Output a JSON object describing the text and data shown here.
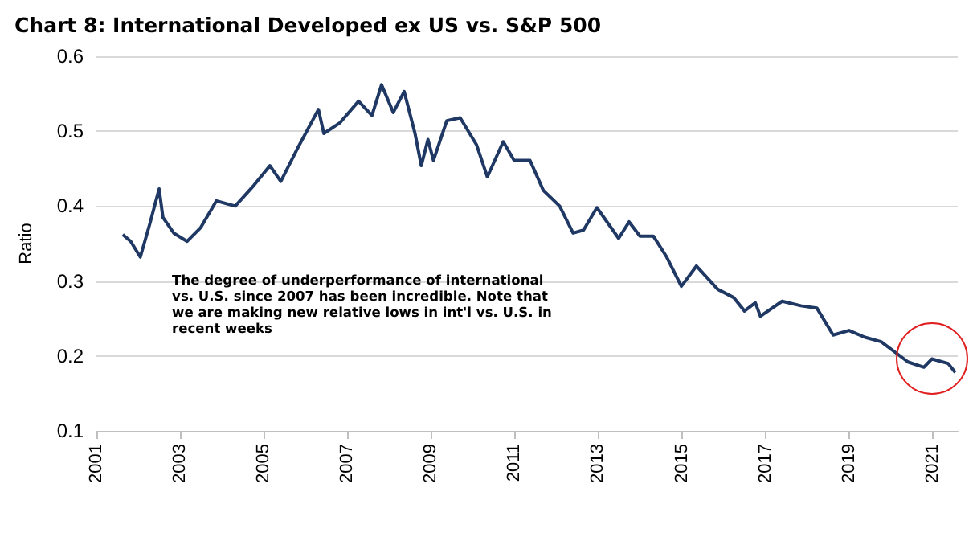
{
  "chart_data": {
    "type": "line",
    "title": "Chart 8: International Developed ex US vs. S&P 500",
    "ylabel": "Ratio",
    "annotations": [
      "The degree of underperformance of international vs. U.S. since 2007 has been incredible.  Note that we are making new relative lows in int'l vs. U.S. in recent weeks"
    ],
    "x": [
      2001.63,
      2001.82,
      2002.05,
      2002.27,
      2002.5,
      2002.59,
      2002.85,
      2003.17,
      2003.49,
      2003.87,
      2004.32,
      2004.77,
      2005.15,
      2005.41,
      2005.8,
      2006.31,
      2006.44,
      2006.82,
      2007.27,
      2007.59,
      2007.82,
      2008.1,
      2008.36,
      2008.62,
      2008.77,
      2008.93,
      2009.06,
      2009.38,
      2009.7,
      2010.09,
      2010.35,
      2010.73,
      2010.99,
      2011.37,
      2011.69,
      2012.08,
      2012.4,
      2012.65,
      2012.97,
      2013.49,
      2013.74,
      2014.0,
      2014.32,
      2014.64,
      2014.99,
      2015.35,
      2015.86,
      2016.24,
      2016.5,
      2016.76,
      2016.88,
      2017.4,
      2017.85,
      2018.23,
      2018.62,
      2019.0,
      2019.38,
      2019.77,
      2020.15,
      2020.41,
      2020.79,
      2020.98,
      2021.37,
      2021.54
    ],
    "series": [
      {
        "color": "#1f3864",
        "values": [
          0.362,
          0.353,
          0.332,
          0.375,
          0.423,
          0.385,
          0.364,
          0.353,
          0.371,
          0.407,
          0.4,
          0.428,
          0.454,
          0.433,
          0.476,
          0.529,
          0.497,
          0.511,
          0.54,
          0.521,
          0.562,
          0.525,
          0.553,
          0.497,
          0.454,
          0.489,
          0.461,
          0.514,
          0.518,
          0.482,
          0.439,
          0.486,
          0.461,
          0.461,
          0.421,
          0.4,
          0.364,
          0.368,
          0.398,
          0.357,
          0.379,
          0.36,
          0.36,
          0.332,
          0.293,
          0.32,
          0.289,
          0.278,
          0.26,
          0.271,
          0.253,
          0.273,
          0.267,
          0.264,
          0.228,
          0.234,
          0.225,
          0.219,
          0.203,
          0.192,
          0.185,
          0.196,
          0.19,
          0.178
        ]
      }
    ],
    "xlim": [
      2001,
      2021.6
    ],
    "xticks": [
      2001,
      2003,
      2005,
      2007,
      2009,
      2011,
      2013,
      2015,
      2017,
      2019,
      2021
    ],
    "ylim": [
      0.1,
      0.6
    ],
    "yticks": [
      0.1,
      0.2,
      0.3,
      0.4,
      0.5,
      0.6
    ],
    "grid": "y",
    "marker": "none",
    "line_style": "solid"
  }
}
